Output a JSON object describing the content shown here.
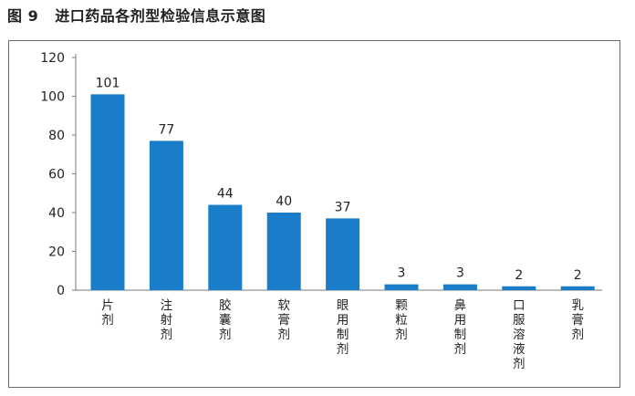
{
  "figure": {
    "number": "图 9",
    "caption": "进口药品各剂型检验信息示意图"
  },
  "chart_data": {
    "type": "bar",
    "title": "",
    "xlabel": "",
    "ylabel": "",
    "categories": [
      "片剂",
      "注射剂",
      "胶囊剂",
      "软膏剂",
      "眼用制剂",
      "颗粒剂",
      "鼻用制剂",
      "口服溶液剂",
      "乳膏剂"
    ],
    "values": [
      101,
      77,
      44,
      40,
      37,
      3,
      3,
      2,
      2
    ],
    "ylim": [
      0,
      120
    ],
    "yticks": [
      0,
      20,
      40,
      60,
      80,
      100,
      120
    ],
    "grid": false,
    "legend": "none",
    "bar_color": "#1a7dc9",
    "show_data_labels": true
  }
}
